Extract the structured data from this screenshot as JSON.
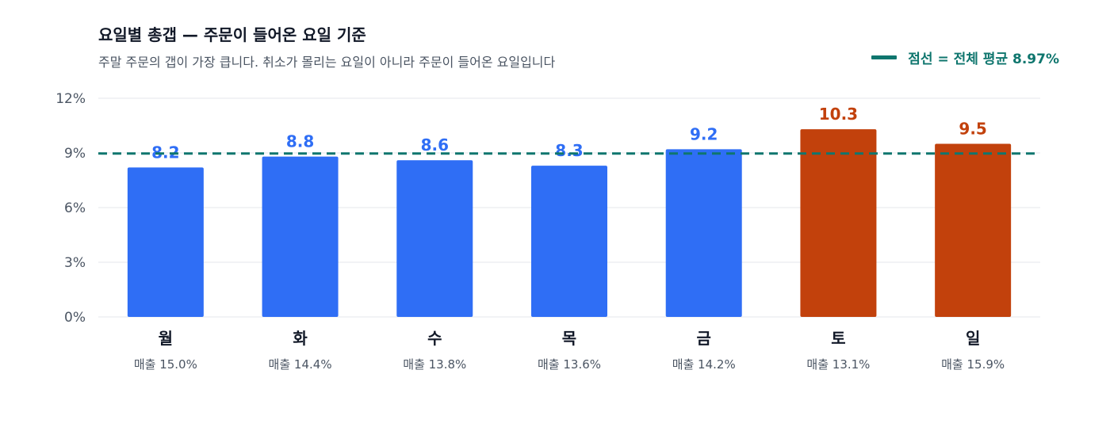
{
  "header": {
    "title": "요일별 총갭 — 주문이 들어온 요일 기준",
    "subtitle": "주말 주문의 갭이 가장 큽니다. 취소가 몰리는 요일이 아니라 주문이 들어온 요일입니다"
  },
  "legend": {
    "label": "점선 = 전체 평균 8.97%"
  },
  "colors": {
    "weekday": "#2f6ef5",
    "weekend": "#c2410c",
    "average": "#0f766e"
  },
  "chart_data": {
    "type": "bar",
    "categories": [
      "월",
      "화",
      "수",
      "목",
      "금",
      "토",
      "일"
    ],
    "values": [
      8.2,
      8.8,
      8.6,
      8.3,
      9.2,
      10.3,
      9.5
    ],
    "value_labels": [
      "8.2",
      "8.8",
      "8.6",
      "8.3",
      "9.2",
      "10.3",
      "9.5"
    ],
    "sales_labels": [
      "매출 15.0%",
      "매출 14.4%",
      "매출 13.8%",
      "매출 13.6%",
      "매출 14.2%",
      "매출 13.1%",
      "매출 15.9%"
    ],
    "highlight": [
      false,
      false,
      false,
      false,
      false,
      true,
      true
    ],
    "average": 8.97,
    "ylim": [
      0,
      12
    ],
    "yticks": [
      0,
      3,
      6,
      9,
      12
    ],
    "ytick_labels": [
      "0%",
      "3%",
      "6%",
      "9%",
      "12%"
    ],
    "grid": true,
    "legend_position": "top-right"
  }
}
